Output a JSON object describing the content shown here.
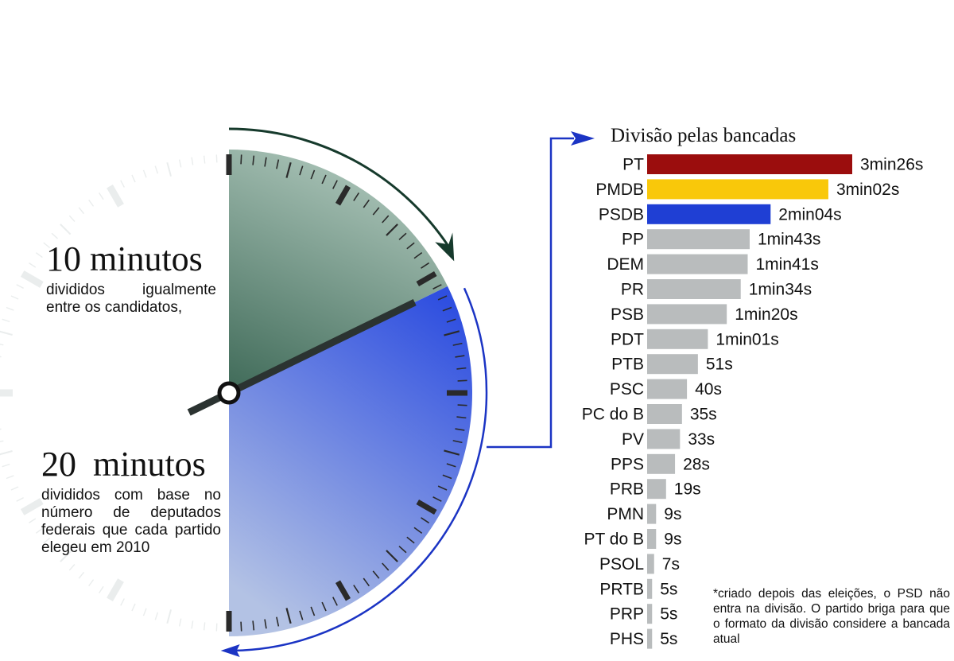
{
  "left": {
    "block1": {
      "headline": "10 minutos",
      "text": "divididos igualmente entre os candidatos,"
    },
    "block2": {
      "headline": "20 minutos",
      "text": "divididos com base no número de deputados federais que cada partido elegeu em 2010"
    }
  },
  "footnote": "*criado depois das eleições, o PSD não entra na divisão. O partido briga para que o formato da divisão considere a bancada atual",
  "colors": {
    "pt": "#9b0d0d",
    "pmdb": "#f9c80a",
    "psdb": "#1f3fd4",
    "other": "#b9bcbd",
    "green": "#6e9685",
    "blue": "#3f5ce2",
    "arrow_green": "#163a2c",
    "arrow_blue": "#1b34c4"
  },
  "chart_data": {
    "type": "bar",
    "orientation": "horizontal",
    "title": "Divisão pelas bancadas",
    "unit": "seconds",
    "categories": [
      "PT",
      "PMDB",
      "PSDB",
      "PP",
      "DEM",
      "PR",
      "PSB",
      "PDT",
      "PTB",
      "PSC",
      "PC do B",
      "PV",
      "PPS",
      "PRB",
      "PMN",
      "PT do B",
      "PSOL",
      "PRTB",
      "PRP",
      "PHS"
    ],
    "values": [
      206,
      182,
      124,
      103,
      101,
      94,
      80,
      61,
      51,
      40,
      35,
      33,
      28,
      19,
      9,
      9,
      7,
      5,
      5,
      5
    ],
    "labels": [
      "3min26s",
      "3min02s",
      "2min04s",
      "1min43s",
      "1min41s",
      "1min34s",
      "1min20s",
      "1min01s",
      "51s",
      "40s",
      "35s",
      "33s",
      "28s",
      "19s",
      "9s",
      "9s",
      "7s",
      "5s",
      "5s",
      "5s"
    ],
    "bar_colors": [
      "pt",
      "pmdb",
      "psdb",
      "other",
      "other",
      "other",
      "other",
      "other",
      "other",
      "other",
      "other",
      "other",
      "other",
      "other",
      "other",
      "other",
      "other",
      "other",
      "other",
      "other"
    ]
  }
}
